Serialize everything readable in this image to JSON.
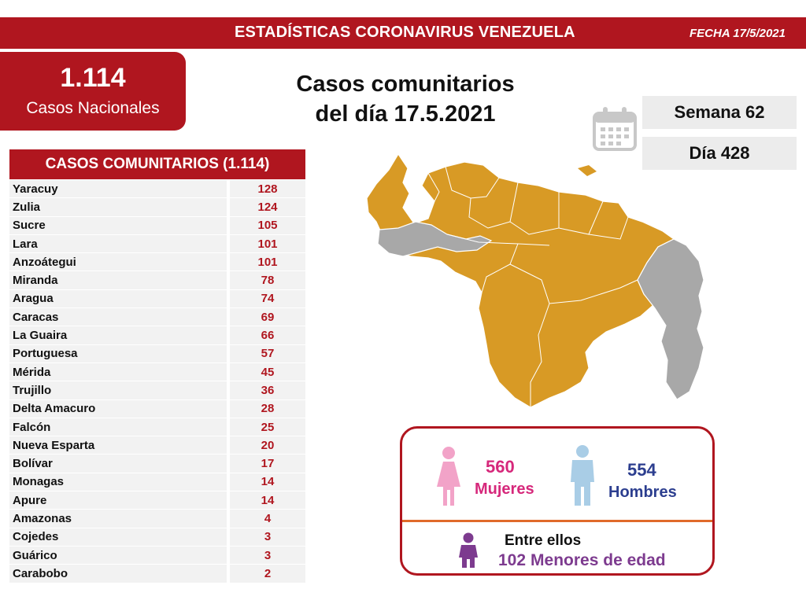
{
  "header": {
    "title": "ESTADÍSTICAS CORONAVIRUS VENEZUELA",
    "date": "FECHA 17/5/2021"
  },
  "national": {
    "count": "1.114",
    "label": "Casos Nacionales"
  },
  "headline": {
    "line1": "Casos comunitarios",
    "line2": "del día 17.5.2021"
  },
  "calendar": {
    "week": "Semana 62",
    "day": "Día 428",
    "icon": "calendar-icon"
  },
  "list": {
    "title": "CASOS COMUNITARIOS (1.114)",
    "rows": [
      {
        "name": "Yaracuy",
        "value": "128"
      },
      {
        "name": "Zulia",
        "value": "124"
      },
      {
        "name": "Sucre",
        "value": "105"
      },
      {
        "name": "Lara",
        "value": "101"
      },
      {
        "name": "Anzoátegui",
        "value": "101"
      },
      {
        "name": "Miranda",
        "value": "78"
      },
      {
        "name": "Aragua",
        "value": "74"
      },
      {
        "name": "Caracas",
        "value": "69"
      },
      {
        "name": "La Guaira",
        "value": "66"
      },
      {
        "name": "Portuguesa",
        "value": "57"
      },
      {
        "name": "Mérida",
        "value": "45"
      },
      {
        "name": "Trujillo",
        "value": "36"
      },
      {
        "name": "Delta Amacuro",
        "value": "28"
      },
      {
        "name": "Falcón",
        "value": "25"
      },
      {
        "name": "Nueva Esparta",
        "value": "20"
      },
      {
        "name": "Bolívar",
        "value": "17"
      },
      {
        "name": "Monagas",
        "value": "14"
      },
      {
        "name": "Apure",
        "value": "14"
      },
      {
        "name": "Amazonas",
        "value": "4"
      },
      {
        "name": "Cojedes",
        "value": "3"
      },
      {
        "name": "Guárico",
        "value": "3"
      },
      {
        "name": "Carabobo",
        "value": "2"
      }
    ]
  },
  "gender": {
    "female_count": "560",
    "female_label": "Mujeres",
    "male_count": "554",
    "male_label": "Hombres",
    "children_intro": "Entre ellos",
    "children_count": "102",
    "children_label": "Menores de edad"
  },
  "colors": {
    "brand_red": "#b0161f",
    "map_orange": "#d89a25",
    "map_gray": "#a8a8a8",
    "female_pink": "#d6287b",
    "male_blue": "#2c3e8f",
    "child_purple": "#7d3b8f"
  }
}
